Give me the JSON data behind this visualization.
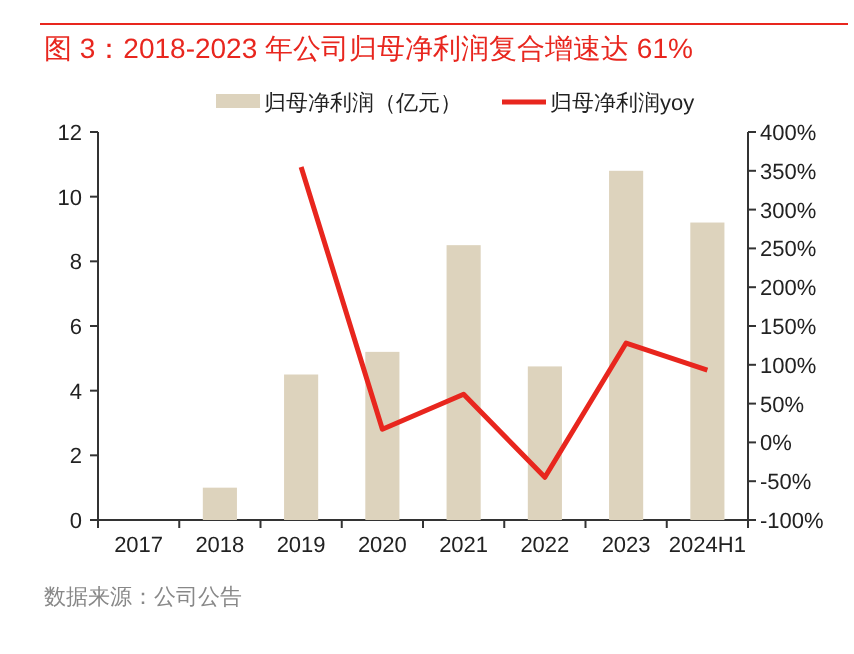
{
  "chart_data": {
    "type": "bar",
    "title": "图 3：2018-2023 年公司归母净利润复合增速达 61%",
    "categories": [
      "2017",
      "2018",
      "2019",
      "2020",
      "2021",
      "2022",
      "2023",
      "2024H1"
    ],
    "series": [
      {
        "name": "归母净利润（亿元）",
        "color": "#ddd3bd",
        "values": [
          null,
          1.0,
          4.5,
          5.2,
          8.5,
          4.75,
          10.8,
          9.2
        ]
      },
      {
        "name": "归母净利润yoy",
        "type": "line",
        "color": "#e8261e",
        "axis": "y2",
        "values": [
          null,
          null,
          355,
          17,
          62,
          -45,
          128,
          93
        ]
      }
    ],
    "ylim": [
      0,
      12
    ],
    "yticks": [
      0,
      2,
      4,
      6,
      8,
      10,
      12
    ],
    "y2lim": [
      -100,
      400
    ],
    "y2ticks": [
      {
        "value": -100,
        "label": "-100%"
      },
      {
        "value": -50,
        "label": "-50%"
      },
      {
        "value": 0,
        "label": "0%"
      },
      {
        "value": 50,
        "label": "50%"
      },
      {
        "value": 100,
        "label": "100%"
      },
      {
        "value": 150,
        "label": "150%"
      },
      {
        "value": 200,
        "label": "200%"
      },
      {
        "value": 250,
        "label": "250%"
      },
      {
        "value": 300,
        "label": "300%"
      },
      {
        "value": 350,
        "label": "350%"
      },
      {
        "value": 400,
        "label": "400%"
      }
    ],
    "legend": "top",
    "grid": false,
    "marker": "none",
    "annotations": [
      "数据来源：公司公告"
    ]
  }
}
